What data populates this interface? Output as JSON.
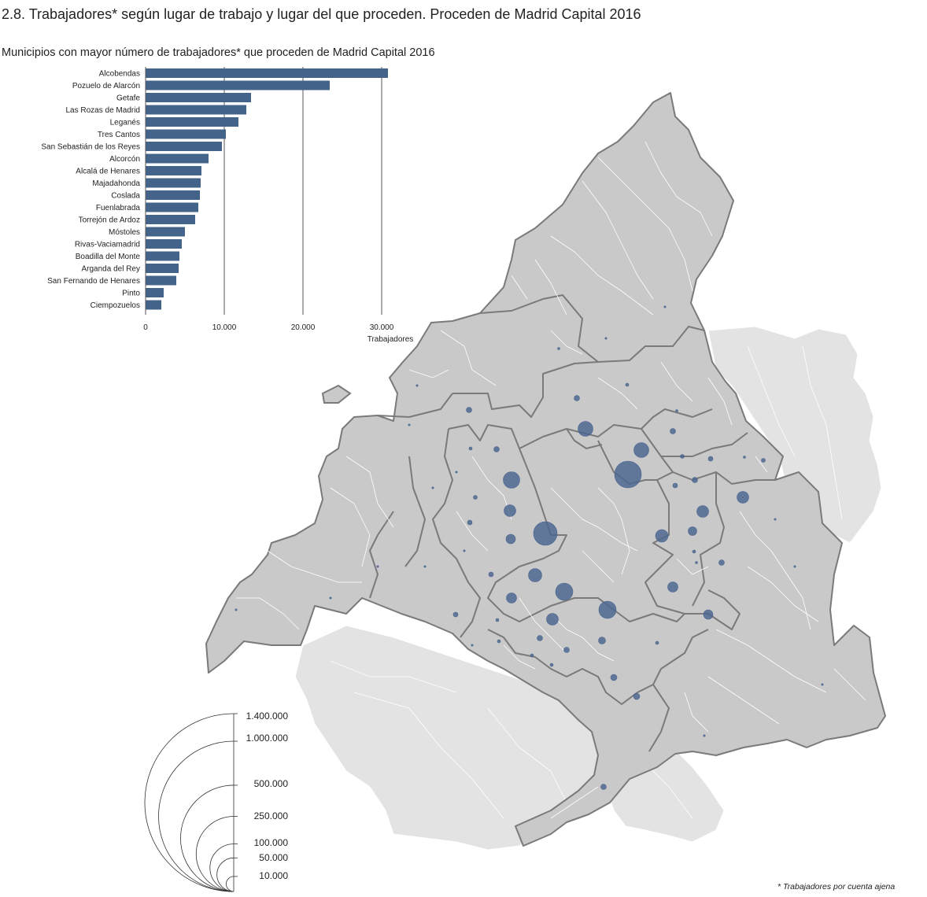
{
  "title": "2.8. Trabajadores* según lugar de trabajo y lugar del que proceden. Proceden de Madrid Capital 2016",
  "footnote": "* Trabajadores por cuenta ajena",
  "colors": {
    "bar": "#44638a",
    "bubble": "#4a6590",
    "region": "#c9c9c9",
    "outside": "#e3e3e3",
    "border": "#7a7a7a"
  },
  "chart_data": [
    {
      "type": "bar",
      "orientation": "horizontal",
      "title": "Municipios con mayor número de trabajadores* que proceden de Madrid Capital 2016",
      "xlabel": "Trabajadores",
      "xlim": [
        0,
        30000
      ],
      "xticks": [
        0,
        10000,
        20000,
        30000
      ],
      "xtick_labels": [
        "0",
        "10.000",
        "20.000",
        "30.000"
      ],
      "grid": "vertical",
      "categories": [
        "Alcobendas",
        "Pozuelo de Alarcón",
        "Getafe",
        "Las Rozas de Madrid",
        "Leganés",
        "Tres Cantos",
        "San Sebastián de los Reyes",
        "Alcorcón",
        "Alcalá de Henares",
        "Majadahonda",
        "Coslada",
        "Fuenlabrada",
        "Torrejón de Ardoz",
        "Móstoles",
        "Rivas-Vaciamadrid",
        "Boadilla del Monte",
        "Arganda del Rey",
        "San Fernando de Henares",
        "Pinto",
        "Ciempozuelos"
      ],
      "values": [
        30800,
        23400,
        13400,
        12800,
        11800,
        10200,
        9700,
        8000,
        7100,
        7000,
        6900,
        6700,
        6300,
        5000,
        4600,
        4300,
        4200,
        3900,
        2300,
        2000
      ]
    },
    {
      "type": "proportional-symbol-map",
      "legend_values": [
        1400000,
        1000000,
        500000,
        250000,
        100000,
        50000,
        10000
      ],
      "legend_labels": [
        "1.400.000",
        "1.000.000",
        "500.000",
        "250.000",
        "100.000",
        "50.000",
        "10.000"
      ]
    }
  ]
}
